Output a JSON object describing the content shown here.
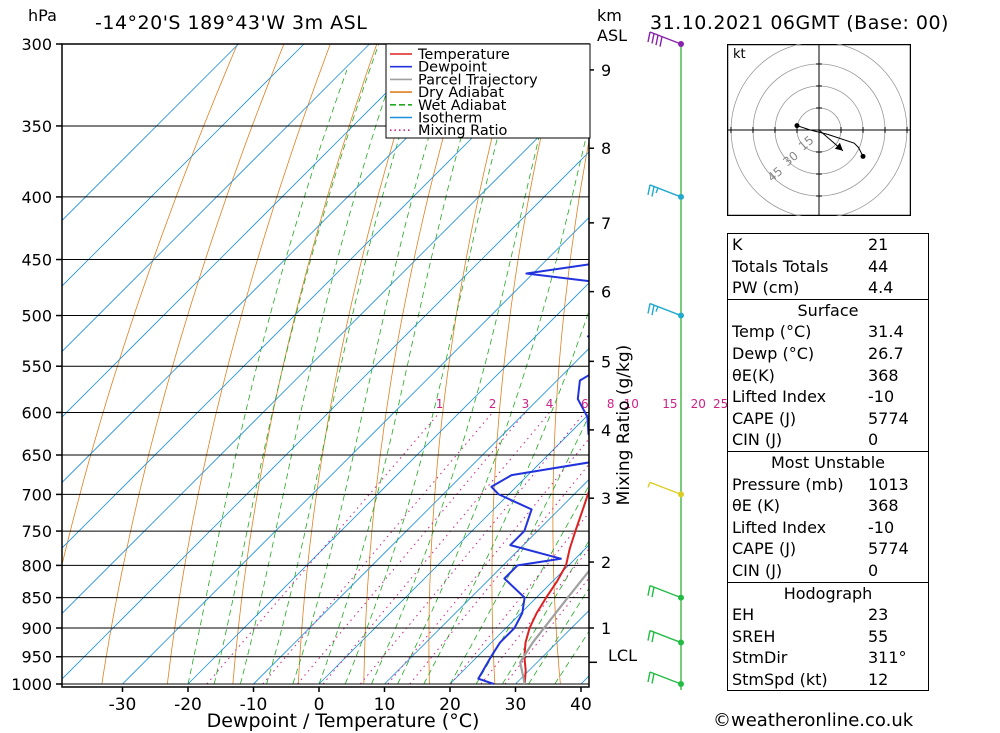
{
  "header": {
    "left_units": "hPa",
    "location": "-14°20'S  189°43'W  3m  ASL",
    "km_label": "km",
    "asl_label": "ASL",
    "datetime": "31.10.2021  06GMT  (Base: 00)"
  },
  "axes": {
    "xlabel": "Dewpoint / Temperature (°C)",
    "mixing_ratio_label": "Mixing Ratio (g/kg)",
    "lcl_label": "LCL"
  },
  "legend": [
    {
      "name": "Temperature",
      "color": "#dd2222",
      "style": "solid"
    },
    {
      "name": "Dewpoint",
      "color": "#2233dd",
      "style": "solid"
    },
    {
      "name": "Parcel Trajectory",
      "color": "#a0a0a0",
      "style": "solid"
    },
    {
      "name": "Dry Adiabat",
      "color": "#e08020",
      "style": "solid"
    },
    {
      "name": "Wet Adiabat",
      "color": "#22aa22",
      "style": "dashed"
    },
    {
      "name": "Isotherm",
      "color": "#1e90dd",
      "style": "solid"
    },
    {
      "name": "Mixing Ratio",
      "color": "#cc2288",
      "style": "dotted"
    }
  ],
  "hodograph": {
    "unit_label": "kt",
    "ring_labels": [
      "15",
      "30",
      "45"
    ]
  },
  "indices": {
    "K": {
      "label": "K",
      "value": "21"
    },
    "TT": {
      "label": "Totals Totals",
      "value": "44"
    },
    "PW": {
      "label": "PW (cm)",
      "value": "4.4"
    }
  },
  "surface": {
    "title": "Surface",
    "rows": [
      {
        "label": "Temp (°C)",
        "value": "31.4"
      },
      {
        "label": "Dewp (°C)",
        "value": "26.7"
      },
      {
        "label": "θE(K)",
        "value": "368"
      },
      {
        "label": "Lifted Index",
        "value": "-10"
      },
      {
        "label": "CAPE (J)",
        "value": "5774"
      },
      {
        "label": "CIN (J)",
        "value": "0"
      }
    ]
  },
  "most_unstable": {
    "title": "Most Unstable",
    "rows": [
      {
        "label": "Pressure (mb)",
        "value": "1013"
      },
      {
        "label": "θE (K)",
        "value": "368"
      },
      {
        "label": "Lifted Index",
        "value": "-10"
      },
      {
        "label": "CAPE (J)",
        "value": "5774"
      },
      {
        "label": "CIN (J)",
        "value": "0"
      }
    ]
  },
  "hodograph_table": {
    "title": "Hodograph",
    "rows": [
      {
        "label": "EH",
        "value": "23"
      },
      {
        "label": "SREH",
        "value": "55"
      },
      {
        "label": "StmDir",
        "value": "311°"
      },
      {
        "label": "StmSpd (kt)",
        "value": "12"
      }
    ]
  },
  "footer": "©weatheronline.co.uk",
  "chart_data": {
    "type": "line",
    "title": "-14°20'S  189°43'W  3m  ASL",
    "xlabel": "Dewpoint / Temperature (°C)",
    "ylabel": "hPa",
    "xlim": [
      -40,
      40
    ],
    "ylim": [
      1000,
      300
    ],
    "x_ticks": [
      -30,
      -20,
      -10,
      0,
      10,
      20,
      30,
      40
    ],
    "pressure_levels": [
      300,
      350,
      400,
      450,
      500,
      550,
      600,
      650,
      700,
      750,
      800,
      850,
      900,
      950,
      1000
    ],
    "height_km_ticks": [
      {
        "km": 1,
        "p": 900
      },
      {
        "km": 2,
        "p": 795
      },
      {
        "km": 3,
        "p": 705
      },
      {
        "km": 4,
        "p": 620
      },
      {
        "km": 5,
        "p": 545
      },
      {
        "km": 6,
        "p": 478
      },
      {
        "km": 7,
        "p": 420
      },
      {
        "km": 8,
        "p": 365
      },
      {
        "km": 9,
        "p": 315
      }
    ],
    "lcl_p": 960,
    "mixing_ratio_values": [
      1,
      2,
      3,
      4,
      6,
      8,
      10,
      15,
      20,
      25
    ],
    "series": [
      {
        "name": "Temperature",
        "color": "#dd2222",
        "points": [
          [
            1000,
            31.4
          ],
          [
            975,
            29.5
          ],
          [
            950,
            27.2
          ],
          [
            925,
            25.2
          ],
          [
            900,
            23.6
          ],
          [
            875,
            22.4
          ],
          [
            850,
            21.5
          ],
          [
            825,
            20.7
          ],
          [
            800,
            19.6
          ],
          [
            775,
            17.6
          ],
          [
            750,
            15.8
          ],
          [
            725,
            14.0
          ],
          [
            700,
            12.1
          ],
          [
            675,
            10.2
          ],
          [
            650,
            8.2
          ],
          [
            625,
            6.3
          ],
          [
            600,
            4.3
          ],
          [
            575,
            1.8
          ],
          [
            550,
            -0.6
          ],
          [
            525,
            -3.0
          ],
          [
            500,
            -5.5
          ],
          [
            475,
            -8.2
          ],
          [
            450,
            -10.9
          ],
          [
            425,
            -13.6
          ],
          [
            400,
            -16.5
          ],
          [
            375,
            -20.0
          ],
          [
            350,
            -23.8
          ],
          [
            325,
            -28.5
          ],
          [
            300,
            -33.0
          ]
        ]
      },
      {
        "name": "Dewpoint",
        "color": "#2233dd",
        "points": [
          [
            1000,
            26.7
          ],
          [
            990,
            23.5
          ],
          [
            950,
            22.1
          ],
          [
            925,
            21.3
          ],
          [
            900,
            21.3
          ],
          [
            875,
            20.2
          ],
          [
            850,
            18.2
          ],
          [
            820,
            12.2
          ],
          [
            800,
            12.2
          ],
          [
            790,
            17.8
          ],
          [
            770,
            8.0
          ],
          [
            750,
            8.0
          ],
          [
            720,
            5.8
          ],
          [
            700,
            -1.5
          ],
          [
            690,
            -3.8
          ],
          [
            675,
            -2.5
          ],
          [
            655,
            10.0
          ],
          [
            640,
            9.2
          ],
          [
            625,
            3.0
          ],
          [
            605,
            0.2
          ],
          [
            585,
            -4.0
          ],
          [
            565,
            -6.5
          ],
          [
            550,
            -5.0
          ],
          [
            535,
            -6.0
          ],
          [
            520,
            -12.0
          ],
          [
            500,
            -9.8
          ],
          [
            480,
            -16.0
          ],
          [
            470,
            -18.0
          ],
          [
            462,
            -31.0
          ],
          [
            450,
            -18.5
          ],
          [
            440,
            -17.0
          ],
          [
            425,
            -19.5
          ],
          [
            410,
            -19.0
          ],
          [
            400,
            -29.0
          ],
          [
            390,
            -24.5
          ],
          [
            375,
            -33.0
          ],
          [
            365,
            -34.0
          ],
          [
            355,
            -20.0
          ],
          [
            340,
            -23.0
          ],
          [
            330,
            -27.0
          ],
          [
            320,
            -26.5
          ],
          [
            310,
            -32.0
          ],
          [
            300,
            -35.0
          ]
        ]
      },
      {
        "name": "Parcel Trajectory",
        "color": "#a0a0a0",
        "points": [
          [
            1000,
            31.4
          ],
          [
            960,
            27.4
          ],
          [
            925,
            26.3
          ],
          [
            850,
            24.8
          ],
          [
            800,
            23.8
          ],
          [
            700,
            21.0
          ],
          [
            600,
            17.0
          ],
          [
            500,
            11.0
          ],
          [
            400,
            2.0
          ],
          [
            360,
            -2.0
          ]
        ]
      }
    ],
    "wind_barbs": [
      {
        "p": 300,
        "speed_kt": 20
      },
      {
        "p": 400,
        "speed_kt": 15
      },
      {
        "p": 500,
        "speed_kt": 15
      },
      {
        "p": 700,
        "speed_kt": 5
      },
      {
        "p": 850,
        "speed_kt": 10
      },
      {
        "p": 925,
        "speed_kt": 10
      },
      {
        "p": 1000,
        "speed_kt": 10
      }
    ],
    "hodograph_points": [
      [
        -5,
        1
      ],
      [
        -2,
        0
      ],
      [
        2,
        -1
      ],
      [
        8,
        -3
      ],
      [
        9,
        -4
      ],
      [
        10,
        -6
      ]
    ],
    "storm_motion": {
      "dir_deg": 311,
      "speed_kt": 12
    }
  }
}
